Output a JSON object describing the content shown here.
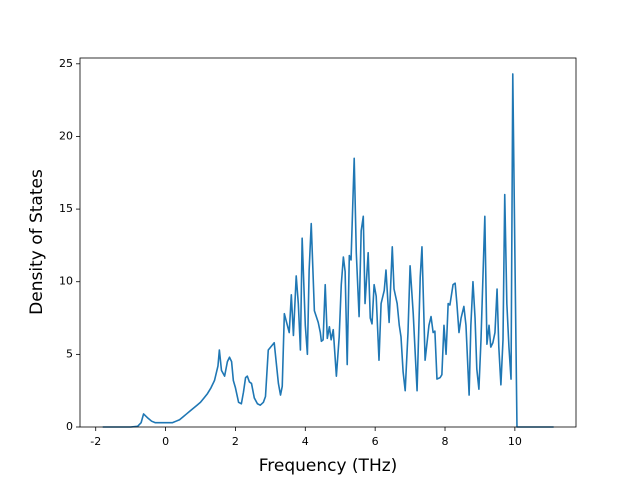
{
  "chart_data": {
    "type": "line",
    "xlabel": "Frequency (THz)",
    "ylabel": "Density of States",
    "color": "#1f77b4",
    "xlim": [
      -2.45,
      11.75
    ],
    "ylim": [
      0,
      25.4
    ],
    "xticks": [
      -2,
      0,
      2,
      4,
      6,
      8,
      10
    ],
    "yticks": [
      0,
      5,
      10,
      15,
      20,
      25
    ],
    "x": [
      -1.8,
      -1.0,
      -0.8,
      -0.7,
      -0.63,
      -0.5,
      -0.4,
      -0.3,
      -0.2,
      0.0,
      0.2,
      0.3,
      0.4,
      0.5,
      0.6,
      0.7,
      0.8,
      0.9,
      1.0,
      1.1,
      1.2,
      1.3,
      1.4,
      1.5,
      1.54,
      1.6,
      1.69,
      1.77,
      1.83,
      1.89,
      1.94,
      2.0,
      2.09,
      2.17,
      2.23,
      2.29,
      2.34,
      2.4,
      2.46,
      2.54,
      2.63,
      2.71,
      2.8,
      2.86,
      2.94,
      3.11,
      3.23,
      3.29,
      3.34,
      3.4,
      3.54,
      3.6,
      3.66,
      3.74,
      3.8,
      3.86,
      3.91,
      4.0,
      4.06,
      4.11,
      4.17,
      4.26,
      4.37,
      4.43,
      4.46,
      4.51,
      4.57,
      4.63,
      4.69,
      4.74,
      4.8,
      4.89,
      4.97,
      5.03,
      5.09,
      5.14,
      5.2,
      5.26,
      5.31,
      5.4,
      5.46,
      5.54,
      5.6,
      5.66,
      5.71,
      5.8,
      5.86,
      5.91,
      5.97,
      6.03,
      6.11,
      6.17,
      6.26,
      6.31,
      6.4,
      6.49,
      6.54,
      6.63,
      6.69,
      6.74,
      6.8,
      6.86,
      6.94,
      7.0,
      7.09,
      7.2,
      7.29,
      7.34,
      7.43,
      7.49,
      7.54,
      7.6,
      7.66,
      7.71,
      7.77,
      7.86,
      7.91,
      7.97,
      8.03,
      8.09,
      8.14,
      8.23,
      8.29,
      8.34,
      8.4,
      8.46,
      8.54,
      8.6,
      8.69,
      8.74,
      8.8,
      8.86,
      8.91,
      8.97,
      9.03,
      9.14,
      9.2,
      9.26,
      9.31,
      9.37,
      9.43,
      9.49,
      9.54,
      9.6,
      9.66,
      9.71,
      9.77,
      9.83,
      9.89,
      9.94,
      10.0,
      10.06,
      11.11
    ],
    "values": [
      0,
      0,
      0.05,
      0.3,
      0.9,
      0.6,
      0.4,
      0.3,
      0.3,
      0.3,
      0.3,
      0.4,
      0.5,
      0.7,
      0.9,
      1.1,
      1.3,
      1.5,
      1.7,
      2.0,
      2.3,
      2.7,
      3.2,
      4.2,
      5.3,
      3.9,
      3.5,
      4.5,
      4.8,
      4.5,
      3.2,
      2.7,
      1.7,
      1.6,
      2.4,
      3.4,
      3.5,
      3.1,
      3.0,
      2.0,
      1.6,
      1.5,
      1.7,
      2.1,
      5.3,
      5.8,
      3.0,
      2.2,
      2.8,
      7.8,
      6.5,
      9.1,
      6.3,
      10.4,
      8.5,
      5.3,
      13.0,
      7.0,
      5.0,
      10.8,
      14.0,
      8.0,
      7.2,
      6.5,
      5.9,
      6.0,
      9.8,
      6.1,
      6.9,
      6.0,
      6.7,
      3.5,
      6.2,
      9.8,
      11.7,
      10.7,
      4.3,
      11.8,
      11.5,
      18.5,
      12.0,
      7.6,
      13.5,
      14.5,
      8.5,
      12.0,
      7.5,
      7.1,
      9.8,
      9.0,
      4.6,
      8.5,
      9.4,
      10.8,
      7.2,
      12.4,
      9.5,
      8.5,
      7.0,
      6.2,
      3.8,
      2.5,
      6.5,
      11.1,
      7.8,
      2.5,
      10.3,
      12.4,
      4.6,
      5.9,
      7.0,
      7.6,
      6.5,
      6.6,
      3.3,
      3.4,
      3.6,
      7.0,
      5.0,
      8.5,
      8.4,
      9.8,
      9.9,
      8.5,
      6.5,
      7.5,
      8.3,
      7.0,
      2.2,
      7.0,
      10.0,
      7.5,
      4.0,
      2.6,
      6.0,
      14.5,
      5.7,
      7.0,
      5.5,
      5.8,
      6.5,
      9.5,
      5.5,
      2.9,
      6.0,
      16.0,
      8.5,
      5.5,
      3.3,
      24.3,
      12.0,
      0,
      0
    ]
  }
}
